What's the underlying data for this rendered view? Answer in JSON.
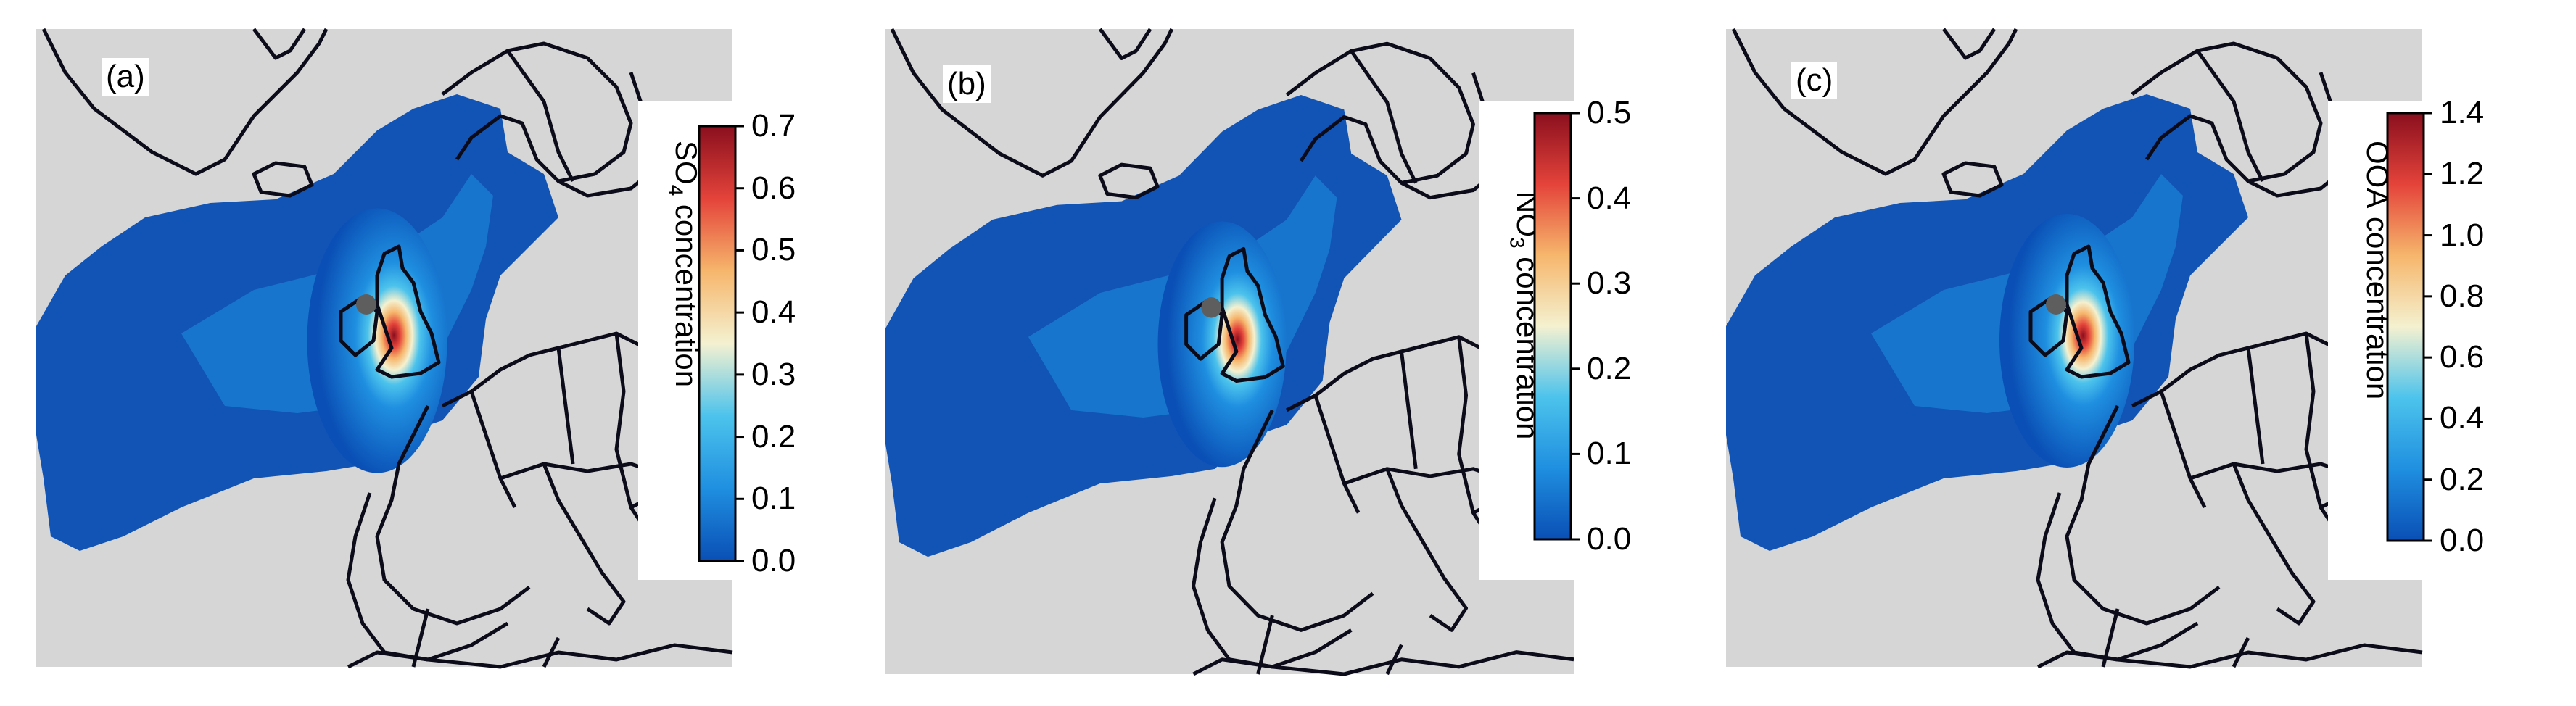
{
  "colors": {
    "land_background": "#d6d6d6",
    "borders": "#0b0b1a",
    "receptor_marker": "#5e5e5e",
    "colormap": [
      "#0a4fb5",
      "#1f8fe0",
      "#4cc3ec",
      "#f4f1d0",
      "#f6b66c",
      "#e4433a",
      "#8a0f1e"
    ]
  },
  "panels": [
    {
      "label": "(a)",
      "colorbar": {
        "species": "SO",
        "subscript": "4",
        "suffix": " concentration",
        "ticks": [
          "0.0",
          "0.1",
          "0.2",
          "0.3",
          "0.4",
          "0.5",
          "0.6",
          "0.7"
        ],
        "min": 0.0,
        "max": 0.7
      },
      "hotspot_level": 0.95
    },
    {
      "label": "(b)",
      "colorbar": {
        "species": "NO",
        "subscript": "3",
        "suffix": " concentration",
        "ticks": [
          "0.0",
          "0.1",
          "0.2",
          "0.3",
          "0.4",
          "0.5"
        ],
        "min": 0.0,
        "max": 0.5
      },
      "hotspot_level": 0.85
    },
    {
      "label": "(c)",
      "colorbar": {
        "species": "OOA",
        "subscript": "",
        "suffix": " concentration",
        "ticks": [
          "0.0",
          "0.2",
          "0.4",
          "0.6",
          "0.8",
          "1.0",
          "1.2",
          "1.4"
        ],
        "min": 0.0,
        "max": 1.4
      },
      "hotspot_level": 0.9
    }
  ]
}
